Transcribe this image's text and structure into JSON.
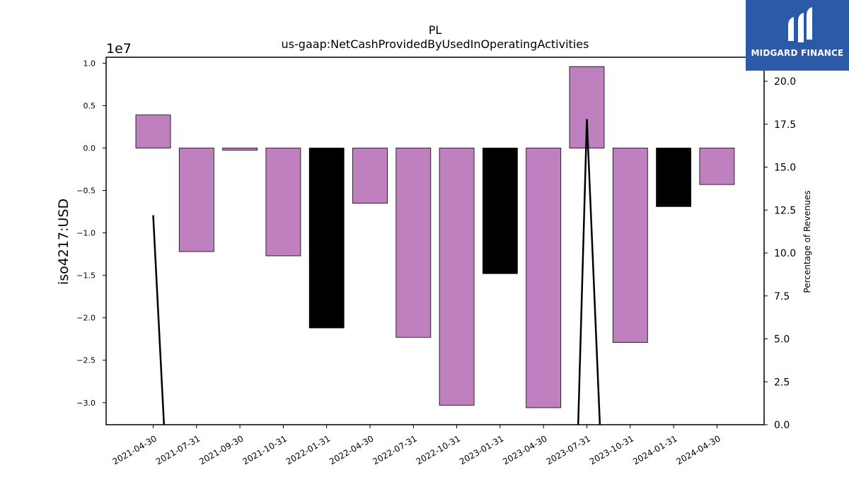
{
  "chart_data": {
    "type": "bar",
    "title": "PL",
    "subtitle": "us-gaap:NetCashProvidedByUsedInOperatingActivities",
    "ylabel": "iso4217:USD",
    "y_offset_label": "1e7",
    "y2label": "Percentage of Revenues",
    "categories": [
      "2021-04-30",
      "2021-07-31",
      "2021-09-30",
      "2021-10-31",
      "2022-01-31",
      "2022-04-30",
      "2022-07-31",
      "2022-10-31",
      "2023-01-31",
      "2023-04-30",
      "2023-07-31",
      "2023-10-31",
      "2024-01-31",
      "2024-04-30"
    ],
    "values": [
      3900000,
      -12200000,
      -250000,
      -12700000,
      -21200000,
      -6500000,
      -22300000,
      -30300000,
      -14800000,
      -30600000,
      9600000,
      -22900000,
      -6900000,
      -4300000
    ],
    "bar_colors": [
      "#bf80bf",
      "#bf80bf",
      "#bf80bf",
      "#bf80bf",
      "#000000",
      "#bf80bf",
      "#bf80bf",
      "#bf80bf",
      "#000000",
      "#bf80bf",
      "#bf80bf",
      "#bf80bf",
      "#000000",
      "#bf80bf"
    ],
    "ylim": [
      -32600000,
      10700000
    ],
    "yticks": [
      -30000000,
      -25000000,
      -20000000,
      -15000000,
      -10000000,
      -5000000,
      0,
      5000000,
      10000000
    ],
    "ytick_labels": [
      "−3.0",
      "−2.5",
      "−2.0",
      "−1.5",
      "−1.0",
      "−0.5",
      "0.0",
      "0.5",
      "1.0"
    ],
    "y2lim": [
      0,
      21.4
    ],
    "y2ticks": [
      0,
      2.5,
      5,
      7.5,
      10,
      12.5,
      15,
      17.5,
      20
    ],
    "y2tick_labels": [
      "0.0",
      "2.5",
      "5.0",
      "7.5",
      "10.0",
      "12.5",
      "15.0",
      "17.5",
      "20.0"
    ],
    "line_series": {
      "name": "",
      "segments": [
        [
          {
            "cat": 0,
            "y": 12.2
          },
          {
            "cat": 0.25,
            "y": 0
          }
        ],
        [
          {
            "cat": 9.8,
            "y": 0
          },
          {
            "cat": 10,
            "y": 17.8
          },
          {
            "cat": 10.3,
            "y": 0
          }
        ]
      ]
    },
    "grid": false
  },
  "logo": {
    "text": "MIDGARD FINANCE",
    "bg_color": "#2b5aa8"
  }
}
